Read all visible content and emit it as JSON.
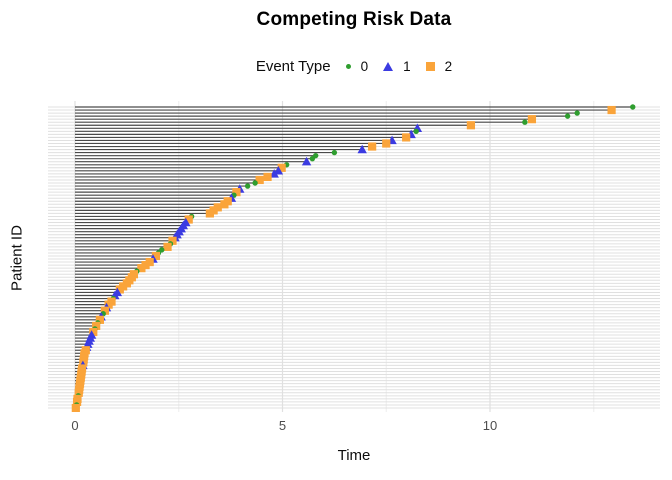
{
  "title": "Competing Risk Data",
  "legend": {
    "title": "Event Type",
    "items": [
      {
        "label": "0",
        "shape": "circle",
        "color": "#2f9e2f"
      },
      {
        "label": "1",
        "shape": "triangle",
        "color": "#3b3be1"
      },
      {
        "label": "2",
        "shape": "square",
        "color": "#faa43a"
      }
    ]
  },
  "axes": {
    "x_label": "Time",
    "y_label": "Patient ID",
    "x_tick_labels": [
      "0",
      "5",
      "10"
    ],
    "x_tick_values": [
      0,
      5,
      10
    ],
    "x_minor_values": [
      2.5,
      7.5,
      12.5
    ],
    "x_range_shown": [
      -0.65,
      14.1
    ]
  },
  "chart_data": {
    "type": "scatter",
    "title": "Competing Risk Data",
    "xlabel": "Time",
    "ylabel": "Patient ID",
    "legend_position": "top",
    "grid": true,
    "n_patients": 100,
    "event_types": [
      "0",
      "1",
      "2"
    ],
    "event_colors": {
      "0": "#2f9e2f",
      "1": "#3b3be1",
      "2": "#faa43a"
    },
    "segment_color": "#4a4a4a",
    "grid_major_color": "#e0e0e0",
    "grid_minor_color": "#eeeeee",
    "patients": [
      {
        "time": 13.44,
        "event": 0
      },
      {
        "time": 12.93,
        "event": 2
      },
      {
        "time": 12.1,
        "event": 0
      },
      {
        "time": 11.87,
        "event": 0
      },
      {
        "time": 11.01,
        "event": 2
      },
      {
        "time": 10.84,
        "event": 0
      },
      {
        "time": 9.54,
        "event": 2
      },
      {
        "time": 8.25,
        "event": 1
      },
      {
        "time": 8.22,
        "event": 0
      },
      {
        "time": 8.1,
        "event": 1
      },
      {
        "time": 7.98,
        "event": 2
      },
      {
        "time": 7.64,
        "event": 1
      },
      {
        "time": 7.5,
        "event": 2
      },
      {
        "time": 7.16,
        "event": 2
      },
      {
        "time": 6.92,
        "event": 1
      },
      {
        "time": 6.25,
        "event": 0
      },
      {
        "time": 5.8,
        "event": 0
      },
      {
        "time": 5.72,
        "event": 0
      },
      {
        "time": 5.58,
        "event": 1
      },
      {
        "time": 5.1,
        "event": 0
      },
      {
        "time": 4.98,
        "event": 2
      },
      {
        "time": 4.9,
        "event": 1
      },
      {
        "time": 4.8,
        "event": 1
      },
      {
        "time": 4.64,
        "event": 2
      },
      {
        "time": 4.45,
        "event": 2
      },
      {
        "time": 4.34,
        "event": 0
      },
      {
        "time": 4.16,
        "event": 0
      },
      {
        "time": 3.97,
        "event": 1
      },
      {
        "time": 3.89,
        "event": 2
      },
      {
        "time": 3.83,
        "event": 0
      },
      {
        "time": 3.77,
        "event": 1
      },
      {
        "time": 3.68,
        "event": 2
      },
      {
        "time": 3.6,
        "event": 2
      },
      {
        "time": 3.44,
        "event": 2
      },
      {
        "time": 3.34,
        "event": 2
      },
      {
        "time": 3.25,
        "event": 2
      },
      {
        "time": 2.81,
        "event": 0
      },
      {
        "time": 2.74,
        "event": 2
      },
      {
        "time": 2.67,
        "event": 1
      },
      {
        "time": 2.61,
        "event": 1
      },
      {
        "time": 2.56,
        "event": 1
      },
      {
        "time": 2.51,
        "event": 1
      },
      {
        "time": 2.46,
        "event": 1
      },
      {
        "time": 2.41,
        "event": 1
      },
      {
        "time": 2.35,
        "event": 2
      },
      {
        "time": 2.3,
        "event": 0
      },
      {
        "time": 2.23,
        "event": 2
      },
      {
        "time": 2.09,
        "event": 0
      },
      {
        "time": 2.01,
        "event": 0
      },
      {
        "time": 1.95,
        "event": 2
      },
      {
        "time": 1.88,
        "event": 1
      },
      {
        "time": 1.8,
        "event": 2
      },
      {
        "time": 1.7,
        "event": 2
      },
      {
        "time": 1.6,
        "event": 2
      },
      {
        "time": 1.49,
        "event": 0
      },
      {
        "time": 1.42,
        "event": 2
      },
      {
        "time": 1.37,
        "event": 2
      },
      {
        "time": 1.31,
        "event": 2
      },
      {
        "time": 1.25,
        "event": 2
      },
      {
        "time": 1.16,
        "event": 2
      },
      {
        "time": 1.08,
        "event": 2
      },
      {
        "time": 1.02,
        "event": 1
      },
      {
        "time": 0.96,
        "event": 1
      },
      {
        "time": 0.92,
        "event": 0
      },
      {
        "time": 0.88,
        "event": 2
      },
      {
        "time": 0.81,
        "event": 2
      },
      {
        "time": 0.76,
        "event": 1
      },
      {
        "time": 0.72,
        "event": 2
      },
      {
        "time": 0.68,
        "event": 0
      },
      {
        "time": 0.63,
        "event": 1
      },
      {
        "time": 0.6,
        "event": 2
      },
      {
        "time": 0.55,
        "event": 0
      },
      {
        "time": 0.51,
        "event": 2
      },
      {
        "time": 0.48,
        "event": 0
      },
      {
        "time": 0.44,
        "event": 2
      },
      {
        "time": 0.4,
        "event": 1
      },
      {
        "time": 0.37,
        "event": 1
      },
      {
        "time": 0.34,
        "event": 1
      },
      {
        "time": 0.31,
        "event": 1
      },
      {
        "time": 0.28,
        "event": 1
      },
      {
        "time": 0.26,
        "event": 2
      },
      {
        "time": 0.23,
        "event": 2
      },
      {
        "time": 0.22,
        "event": 2
      },
      {
        "time": 0.21,
        "event": 2
      },
      {
        "time": 0.2,
        "event": 2
      },
      {
        "time": 0.19,
        "event": 1
      },
      {
        "time": 0.17,
        "event": 2
      },
      {
        "time": 0.16,
        "event": 2
      },
      {
        "time": 0.15,
        "event": 2
      },
      {
        "time": 0.14,
        "event": 2
      },
      {
        "time": 0.13,
        "event": 2
      },
      {
        "time": 0.12,
        "event": 2
      },
      {
        "time": 0.11,
        "event": 2
      },
      {
        "time": 0.1,
        "event": 2
      },
      {
        "time": 0.09,
        "event": 2
      },
      {
        "time": 0.08,
        "event": 0
      },
      {
        "time": 0.06,
        "event": 2
      },
      {
        "time": 0.05,
        "event": 2
      },
      {
        "time": 0.04,
        "event": 0
      },
      {
        "time": 0.02,
        "event": 2
      }
    ]
  }
}
